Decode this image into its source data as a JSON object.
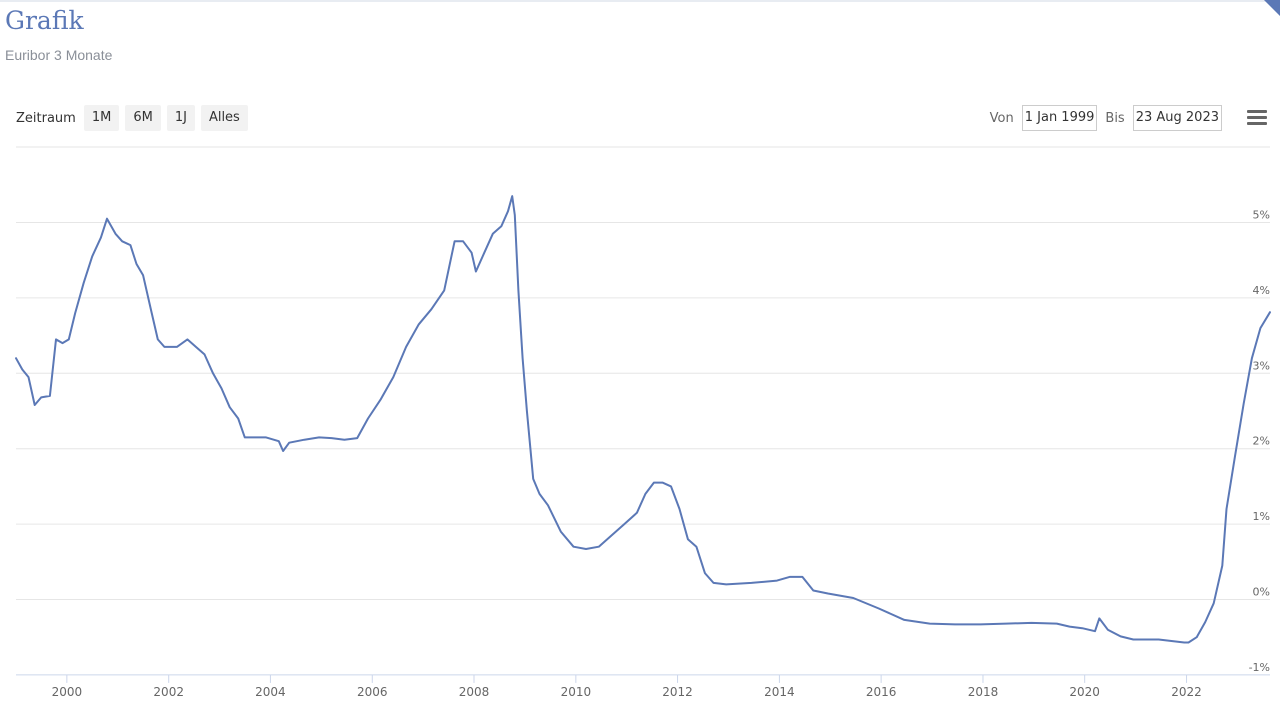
{
  "header": {
    "title": "Grafik",
    "subtitle": "Euribor 3 Monate"
  },
  "range_selector": {
    "label": "Zeitraum",
    "buttons": [
      "1M",
      "6M",
      "1J",
      "Alles"
    ]
  },
  "date_range": {
    "from_label": "Von",
    "from_value": "1 Jan 1999",
    "to_label": "Bis",
    "to_value": "23 Aug 2023"
  },
  "colors": {
    "line": "#5b78b6",
    "title": "#5b78b6",
    "grid": "#e6e6e6"
  },
  "icons": {
    "menu": "hamburger-menu-icon"
  },
  "chart_data": {
    "type": "line",
    "title": "",
    "xlabel": "",
    "ylabel": "",
    "y_axis_position": "right",
    "grid": true,
    "x_ticks": [
      "2000",
      "2002",
      "2004",
      "2006",
      "2008",
      "2010",
      "2012",
      "2014",
      "2016",
      "2018",
      "2020",
      "2022"
    ],
    "y_ticks": [
      "5%",
      "4%",
      "3%",
      "2%",
      "1%",
      "0%",
      "-1%"
    ],
    "xlim": [
      "1999-01-01",
      "2023-08-23"
    ],
    "ylim": [
      -1,
      6
    ],
    "series": [
      {
        "x": [
          "1999-01-01",
          "1999-02-15",
          "1999-04-01",
          "1999-05-15",
          "1999-07-01",
          "1999-09-01",
          "1999-10-15",
          "1999-12-01",
          "2000-01-15",
          "2000-03-01",
          "2000-05-01",
          "2000-07-01",
          "2000-09-01",
          "2000-10-15",
          "2000-12-15",
          "2001-02-01",
          "2001-04-01",
          "2001-05-15",
          "2001-07-01",
          "2001-09-01",
          "2001-10-15",
          "2001-12-01",
          "2002-03-01",
          "2002-05-15",
          "2002-07-15",
          "2002-09-15",
          "2002-11-15",
          "2003-01-15",
          "2003-03-15",
          "2003-05-15",
          "2003-07-01",
          "2003-09-01",
          "2003-12-01",
          "2004-03-01",
          "2004-04-01",
          "2004-05-15",
          "2004-09-01",
          "2004-12-15",
          "2005-03-15",
          "2005-06-15",
          "2005-09-15",
          "2005-12-01",
          "2006-03-01",
          "2006-06-01",
          "2006-09-01",
          "2006-12-01",
          "2007-03-01",
          "2007-06-01",
          "2007-08-15",
          "2007-10-15",
          "2007-12-15",
          "2008-01-15",
          "2008-03-15",
          "2008-05-15",
          "2008-07-15",
          "2008-09-01",
          "2008-10-01",
          "2008-10-20",
          "2008-11-15",
          "2008-12-15",
          "2009-01-15",
          "2009-03-01",
          "2009-04-15",
          "2009-06-15",
          "2009-09-15",
          "2009-12-15",
          "2010-03-15",
          "2010-06-15",
          "2010-09-15",
          "2010-12-15",
          "2011-03-15",
          "2011-05-15",
          "2011-07-15",
          "2011-09-15",
          "2011-11-15",
          "2012-01-15",
          "2012-03-15",
          "2012-05-15",
          "2012-07-15",
          "2012-09-15",
          "2012-12-15",
          "2013-06-15",
          "2013-12-15",
          "2014-03-15",
          "2014-06-15",
          "2014-09-01",
          "2014-12-15",
          "2015-06-15",
          "2015-12-15",
          "2016-06-15",
          "2016-12-15",
          "2017-06-15",
          "2017-12-15",
          "2018-06-15",
          "2018-12-15",
          "2019-06-15",
          "2019-09-15",
          "2019-12-15",
          "2020-03-15",
          "2020-04-15",
          "2020-06-15",
          "2020-09-15",
          "2020-12-15",
          "2021-06-15",
          "2021-12-15",
          "2022-01-15",
          "2022-03-15",
          "2022-05-15",
          "2022-07-15",
          "2022-09-15",
          "2022-10-15",
          "2022-12-15",
          "2023-02-15",
          "2023-04-15",
          "2023-06-15",
          "2023-08-23"
        ],
        "y": [
          3.2,
          3.05,
          2.95,
          2.58,
          2.68,
          2.7,
          3.45,
          3.4,
          3.45,
          3.8,
          4.2,
          4.55,
          4.8,
          5.05,
          4.85,
          4.75,
          4.7,
          4.45,
          4.3,
          3.8,
          3.45,
          3.35,
          3.35,
          3.45,
          3.35,
          3.25,
          3.0,
          2.8,
          2.55,
          2.4,
          2.15,
          2.15,
          2.15,
          2.1,
          1.97,
          2.08,
          2.12,
          2.15,
          2.14,
          2.12,
          2.14,
          2.4,
          2.65,
          2.95,
          3.35,
          3.65,
          3.85,
          4.1,
          4.75,
          4.75,
          4.6,
          4.35,
          4.6,
          4.85,
          4.95,
          5.15,
          5.35,
          5.1,
          4.1,
          3.2,
          2.5,
          1.6,
          1.4,
          1.25,
          0.9,
          0.7,
          0.67,
          0.7,
          0.85,
          1.0,
          1.15,
          1.4,
          1.55,
          1.55,
          1.5,
          1.2,
          0.8,
          0.7,
          0.35,
          0.22,
          0.2,
          0.22,
          0.25,
          0.3,
          0.3,
          0.12,
          0.08,
          0.02,
          -0.12,
          -0.27,
          -0.32,
          -0.33,
          -0.33,
          -0.32,
          -0.31,
          -0.32,
          -0.36,
          -0.38,
          -0.42,
          -0.25,
          -0.4,
          -0.49,
          -0.53,
          -0.53,
          -0.57,
          -0.57,
          -0.5,
          -0.3,
          -0.05,
          0.45,
          1.2,
          1.9,
          2.6,
          3.2,
          3.6,
          3.81
        ]
      }
    ]
  }
}
